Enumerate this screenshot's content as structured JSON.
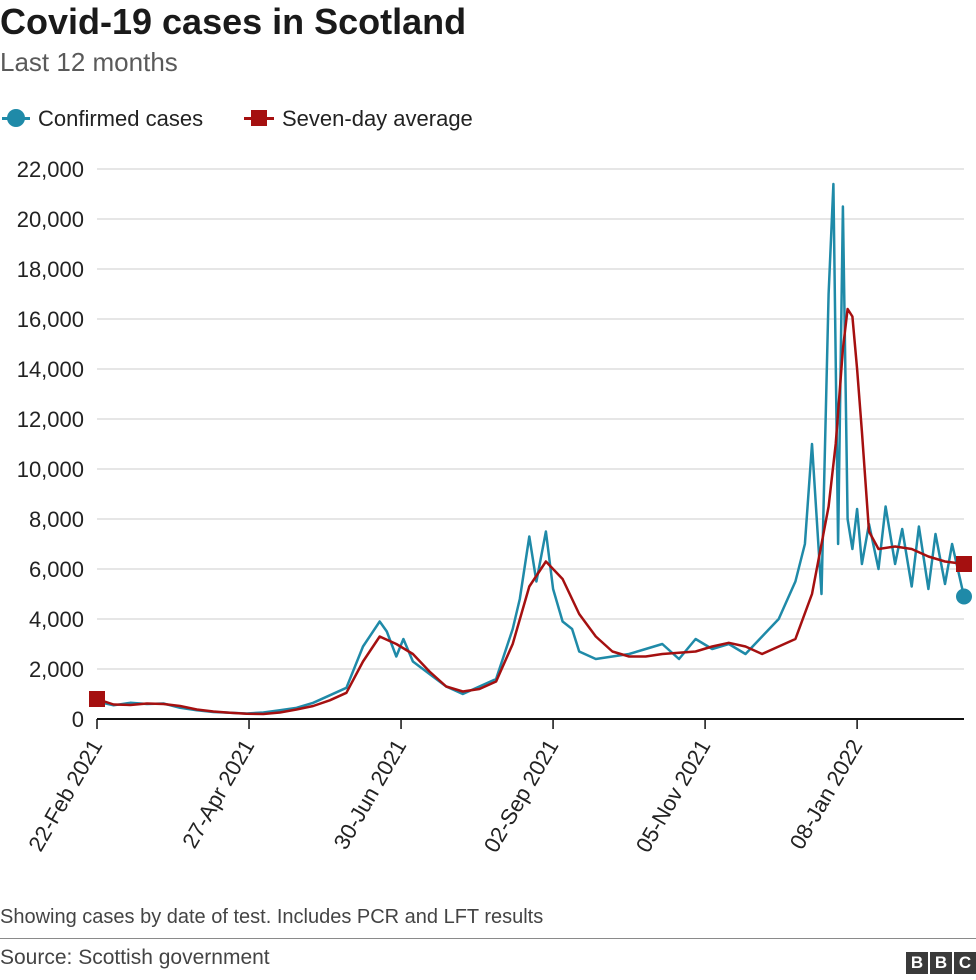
{
  "title": "Covid-19 cases in Scotland",
  "subtitle": "Last 12 months",
  "legend": {
    "confirmed": "Confirmed cases",
    "average": "Seven-day average"
  },
  "footer": {
    "note": "Showing cases by date of test. Includes PCR and LFT results",
    "source": "Source: Scottish government",
    "logo_letters": [
      "B",
      "B",
      "C"
    ]
  },
  "colors": {
    "confirmed": "#1f8aa8",
    "average": "#a51010",
    "grid": "#cccccc",
    "axis": "#111111"
  },
  "chart_data": {
    "type": "line",
    "title": "Covid-19 cases in Scotland",
    "subtitle": "Last 12 months",
    "xlabel": "",
    "ylabel": "",
    "ylim": [
      0,
      22000
    ],
    "yticks": [
      0,
      2000,
      4000,
      6000,
      8000,
      10000,
      12000,
      14000,
      16000,
      18000,
      20000,
      22000
    ],
    "ytick_labels": [
      "0",
      "2,000",
      "4,000",
      "6,000",
      "8,000",
      "10,000",
      "12,000",
      "14,000",
      "16,000",
      "18,000",
      "20,000",
      "22,000"
    ],
    "x_range": [
      "2021-02-22",
      "2022-02-22"
    ],
    "xticks": [
      "2021-02-22",
      "2021-04-27",
      "2021-06-30",
      "2021-09-02",
      "2021-11-05",
      "2022-01-08"
    ],
    "xtick_labels": [
      "22-Feb 2021",
      "27-Apr 2021",
      "30-Jun 2021",
      "02-Sep 2021",
      "05-Nov 2021",
      "08-Jan 2022"
    ],
    "grid": true,
    "legend_position": "top-left",
    "series": [
      {
        "name": "Confirmed cases",
        "marker": "circle",
        "x": [
          "2021-02-22",
          "2021-03-01",
          "2021-03-08",
          "2021-03-15",
          "2021-03-22",
          "2021-03-29",
          "2021-04-05",
          "2021-04-12",
          "2021-04-19",
          "2021-04-26",
          "2021-05-03",
          "2021-05-10",
          "2021-05-17",
          "2021-05-24",
          "2021-05-31",
          "2021-06-07",
          "2021-06-14",
          "2021-06-21",
          "2021-06-24",
          "2021-06-28",
          "2021-07-01",
          "2021-07-05",
          "2021-07-12",
          "2021-07-19",
          "2021-07-26",
          "2021-08-02",
          "2021-08-09",
          "2021-08-16",
          "2021-08-19",
          "2021-08-23",
          "2021-08-26",
          "2021-08-30",
          "2021-09-02",
          "2021-09-06",
          "2021-09-10",
          "2021-09-13",
          "2021-09-20",
          "2021-09-27",
          "2021-10-04",
          "2021-10-11",
          "2021-10-18",
          "2021-10-25",
          "2021-11-01",
          "2021-11-08",
          "2021-11-15",
          "2021-11-22",
          "2021-11-29",
          "2021-12-06",
          "2021-12-13",
          "2021-12-17",
          "2021-12-20",
          "2021-12-24",
          "2021-12-27",
          "2021-12-29",
          "2021-12-31",
          "2022-01-02",
          "2022-01-04",
          "2022-01-06",
          "2022-01-08",
          "2022-01-10",
          "2022-01-13",
          "2022-01-17",
          "2022-01-20",
          "2022-01-24",
          "2022-01-27",
          "2022-01-31",
          "2022-02-03",
          "2022-02-07",
          "2022-02-10",
          "2022-02-14",
          "2022-02-17",
          "2022-02-22"
        ],
        "values": [
          700,
          550,
          650,
          600,
          620,
          450,
          350,
          280,
          250,
          220,
          260,
          350,
          450,
          650,
          950,
          1250,
          2900,
          3900,
          3500,
          2500,
          3200,
          2300,
          1800,
          1300,
          1000,
          1300,
          1600,
          3600,
          4800,
          7300,
          5500,
          7500,
          5200,
          3900,
          3600,
          2700,
          2400,
          2500,
          2600,
          2800,
          3000,
          2400,
          3200,
          2800,
          3000,
          2600,
          3300,
          4000,
          5500,
          7000,
          11000,
          5000,
          17000,
          21400,
          7000,
          20500,
          8000,
          6800,
          8400,
          6200,
          7800,
          6000,
          8500,
          6200,
          7600,
          5300,
          7700,
          5200,
          7400,
          5400,
          7000,
          4900
        ]
      },
      {
        "name": "Seven-day average",
        "marker": "square",
        "x": [
          "2021-02-22",
          "2021-03-01",
          "2021-03-08",
          "2021-03-15",
          "2021-03-22",
          "2021-03-29",
          "2021-04-05",
          "2021-04-12",
          "2021-04-19",
          "2021-04-26",
          "2021-05-03",
          "2021-05-10",
          "2021-05-17",
          "2021-05-24",
          "2021-05-31",
          "2021-06-07",
          "2021-06-14",
          "2021-06-21",
          "2021-06-28",
          "2021-07-05",
          "2021-07-12",
          "2021-07-19",
          "2021-07-26",
          "2021-08-02",
          "2021-08-09",
          "2021-08-16",
          "2021-08-23",
          "2021-08-30",
          "2021-09-06",
          "2021-09-13",
          "2021-09-20",
          "2021-09-27",
          "2021-10-04",
          "2021-10-11",
          "2021-10-18",
          "2021-10-25",
          "2021-11-01",
          "2021-11-08",
          "2021-11-15",
          "2021-11-22",
          "2021-11-29",
          "2021-12-06",
          "2021-12-13",
          "2021-12-20",
          "2021-12-24",
          "2021-12-27",
          "2021-12-30",
          "2022-01-02",
          "2022-01-04",
          "2022-01-06",
          "2022-01-08",
          "2022-01-10",
          "2022-01-13",
          "2022-01-17",
          "2022-01-24",
          "2022-01-31",
          "2022-02-07",
          "2022-02-14",
          "2022-02-22"
        ],
        "values": [
          800,
          580,
          560,
          620,
          600,
          520,
          380,
          300,
          250,
          210,
          200,
          260,
          380,
          520,
          750,
          1050,
          2300,
          3300,
          3000,
          2600,
          1900,
          1300,
          1100,
          1200,
          1500,
          3000,
          5300,
          6300,
          5600,
          4200,
          3300,
          2700,
          2500,
          2500,
          2600,
          2650,
          2700,
          2900,
          3050,
          2900,
          2600,
          2900,
          3200,
          5000,
          7000,
          8500,
          11000,
          14800,
          16400,
          16100,
          14000,
          11500,
          7500,
          6800,
          6900,
          6800,
          6500,
          6300,
          6200
        ]
      }
    ]
  }
}
